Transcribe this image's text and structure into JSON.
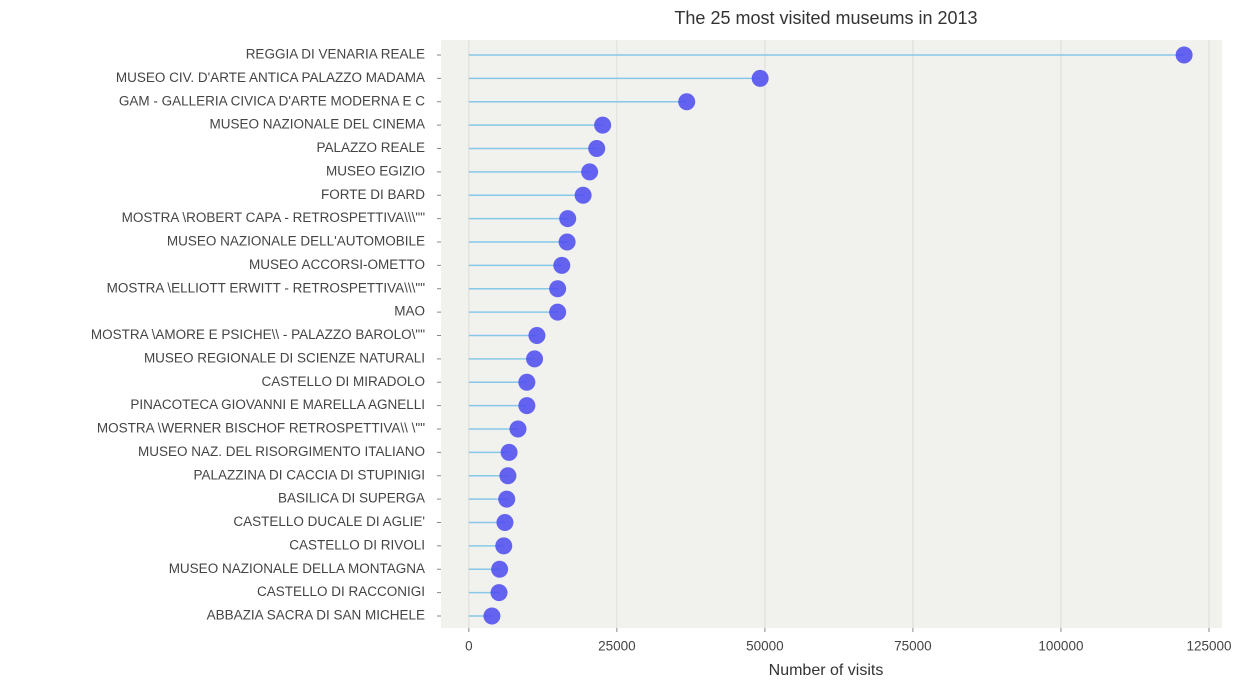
{
  "chart_data": {
    "type": "lollipop",
    "title": "The 25 most visited museums in 2013",
    "x_label": "Number of visits",
    "categories": [
      "REGGIA DI VENARIA REALE",
      "MUSEO CIV. D'ARTE ANTICA PALAZZO MADAMA",
      "GAM - GALLERIA CIVICA D'ARTE MODERNA E C",
      "MUSEO NAZIONALE DEL CINEMA",
      "PALAZZO REALE",
      "MUSEO EGIZIO",
      "FORTE DI BARD",
      "MOSTRA \\ROBERT CAPA - RETROSPETTIVA\\\\\\\"\"",
      "MUSEO NAZIONALE DELL'AUTOMOBILE",
      "MUSEO ACCORSI-OMETTO",
      "MOSTRA \\ELLIOTT ERWITT - RETROSPETTIVA\\\\\\\"\"",
      "MAO",
      "MOSTRA \\AMORE E PSICHE\\\\ - PALAZZO BAROLO\\\"\"",
      "MUSEO REGIONALE DI SCIENZE NATURALI",
      "CASTELLO DI MIRADOLO",
      "PINACOTECA GIOVANNI E MARELLA AGNELLI",
      "MOSTRA \\WERNER BISCHOF RETROSPETTIVA\\\\ \\\"\"",
      "MUSEO NAZ. DEL RISORGIMENTO ITALIANO",
      "PALAZZINA DI CACCIA DI STUPINIGI",
      "BASILICA DI SUPERGA",
      "CASTELLO DUCALE DI AGLIE'",
      "CASTELLO DI RIVOLI",
      "MUSEO NAZIONALE DELLA MONTAGNA",
      "CASTELLO DI RACCONIGI",
      "ABBAZIA SACRA DI SAN MICHELE"
    ],
    "values": [
      120800,
      49200,
      36800,
      22600,
      21600,
      20400,
      19300,
      16700,
      16600,
      15700,
      15000,
      15000,
      11500,
      11100,
      9800,
      9800,
      8300,
      6800,
      6600,
      6400,
      6100,
      5900,
      5200,
      5100,
      3900
    ],
    "segment_color": "#87c8e8",
    "point_color": "#4a4af0",
    "xlim": [
      -4700,
      127200
    ],
    "xticks": [
      0,
      25000,
      50000,
      75000,
      100000,
      125000
    ],
    "grid": true
  }
}
